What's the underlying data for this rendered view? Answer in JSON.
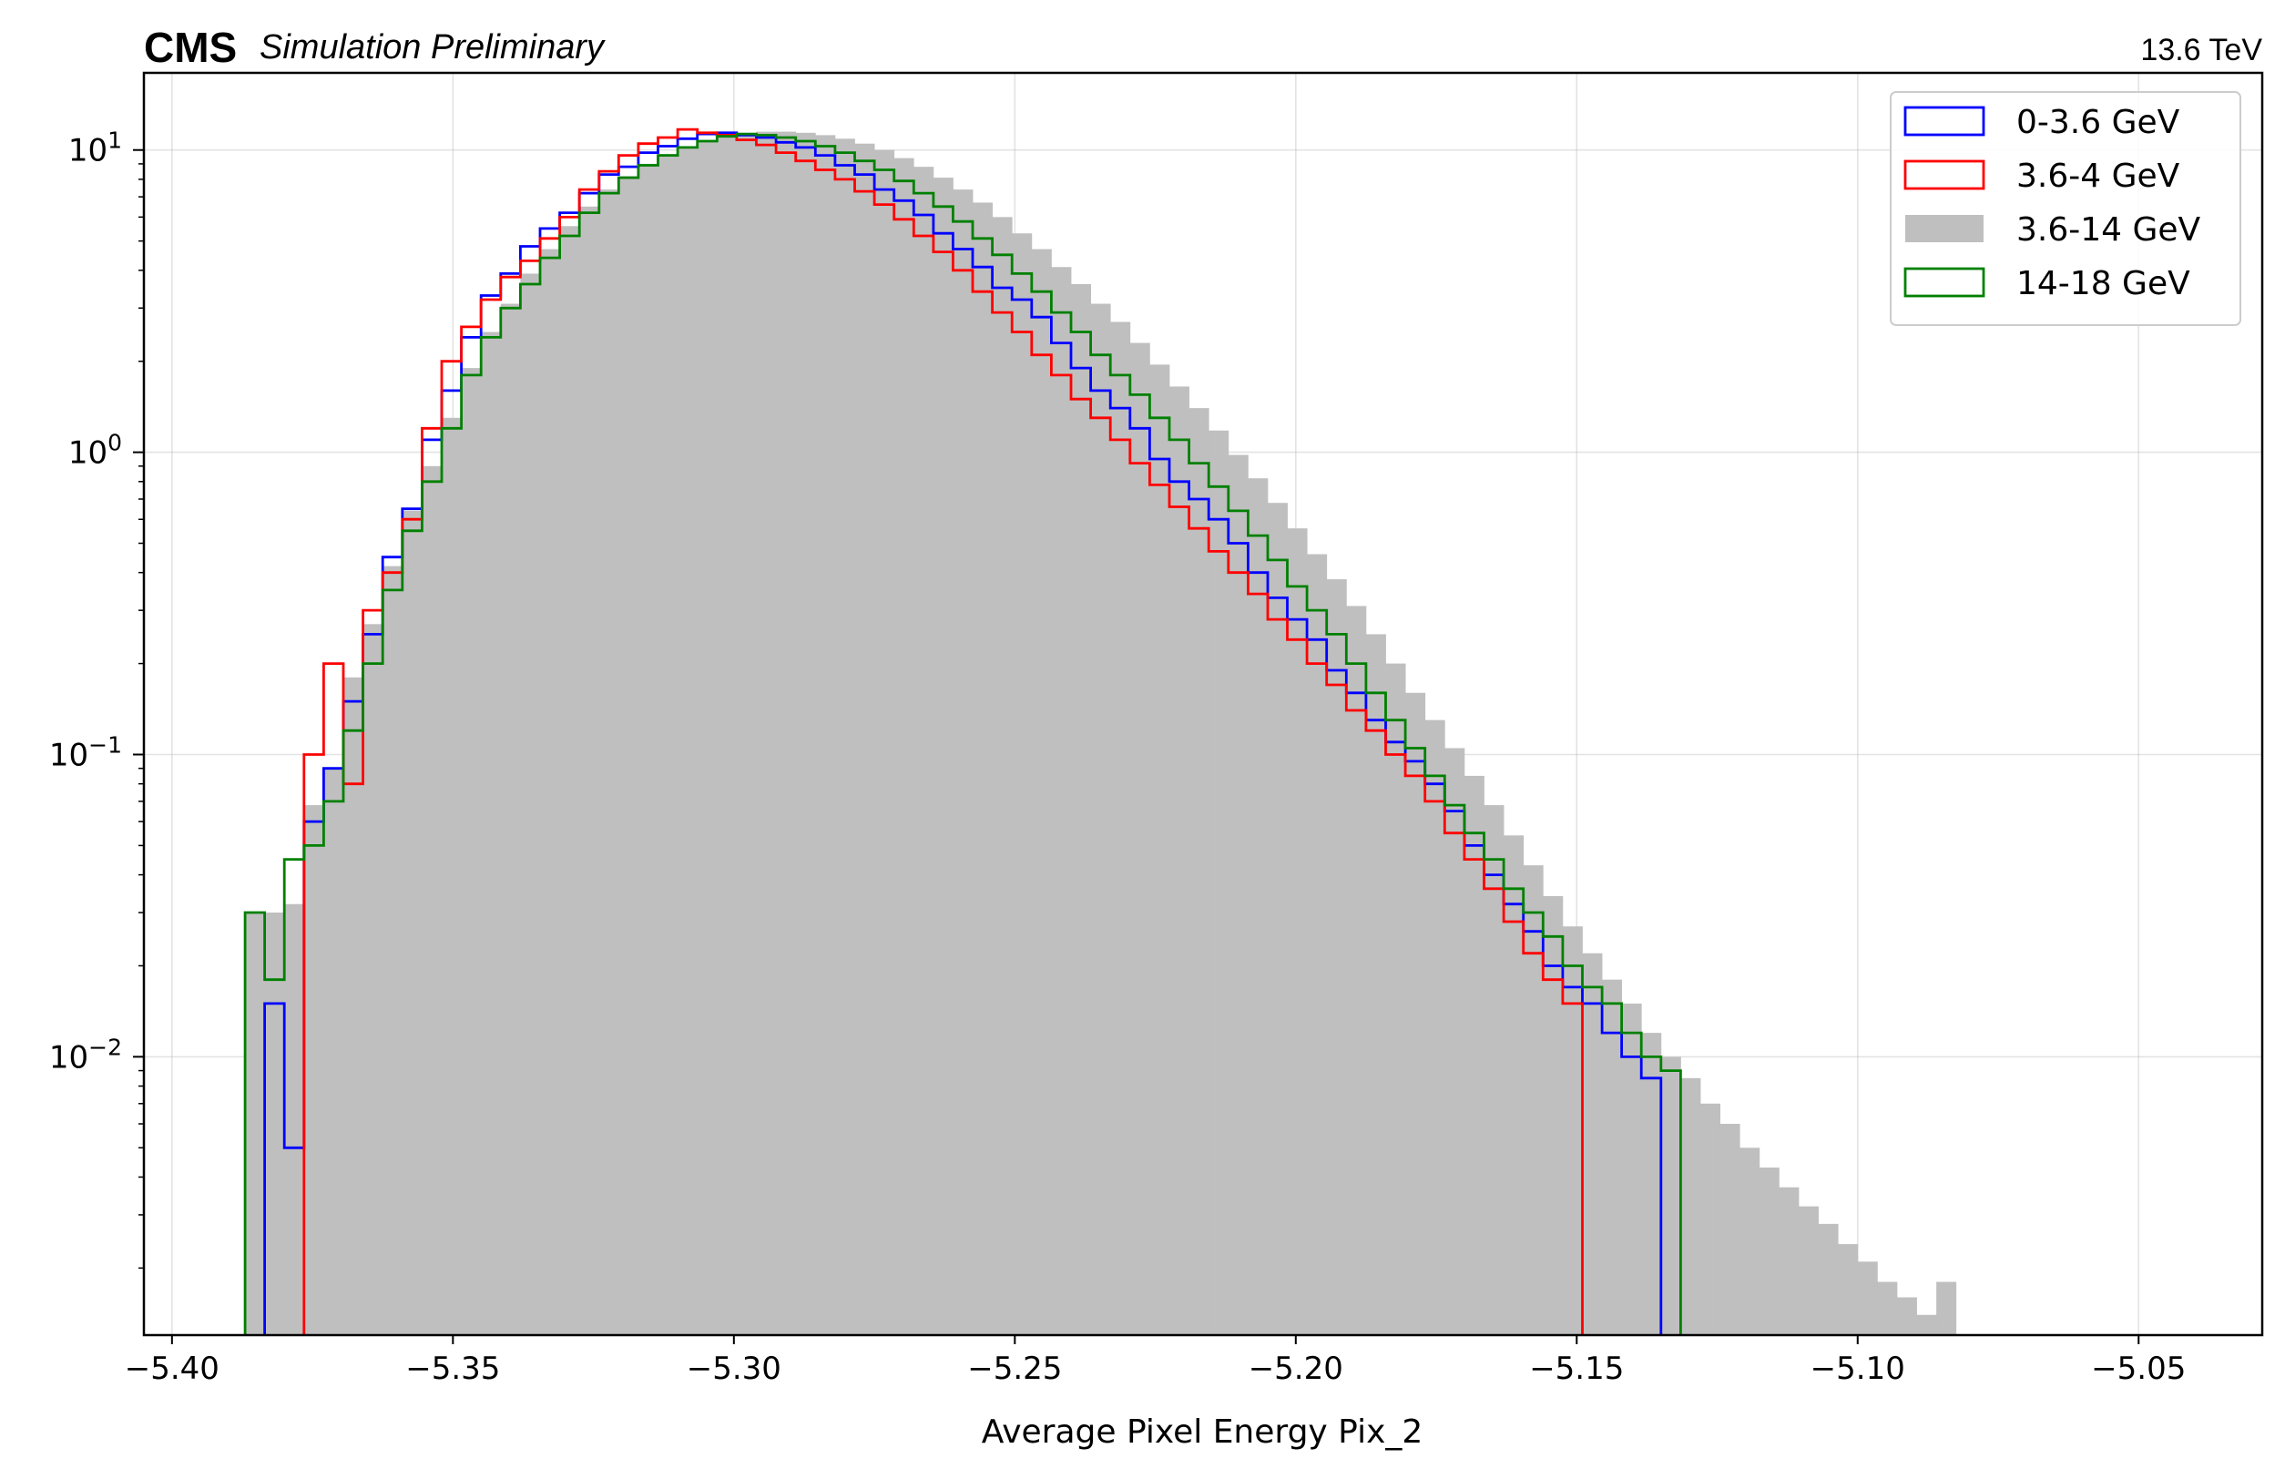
{
  "header": {
    "experiment": "CMS",
    "status": "Simulation Preliminary",
    "energy": "13.6 TeV"
  },
  "chart_data": {
    "type": "histogram",
    "xlabel": "Average Pixel Energy Pix_2",
    "ylabel": "",
    "xlim": [
      -5.405,
      -5.028
    ],
    "ylim": [
      0.0012,
      18
    ],
    "yscale": "log",
    "grid": true,
    "legend_position": "top-right",
    "x_ticks": [
      {
        "value": -5.4,
        "label": "−5.40"
      },
      {
        "value": -5.35,
        "label": "−5.35"
      },
      {
        "value": -5.3,
        "label": "−5.30"
      },
      {
        "value": -5.25,
        "label": "−5.25"
      },
      {
        "value": -5.2,
        "label": "−5.20"
      },
      {
        "value": -5.15,
        "label": "−5.15"
      },
      {
        "value": -5.1,
        "label": "−5.10"
      },
      {
        "value": -5.05,
        "label": "−5.05"
      }
    ],
    "y_ticks": [
      {
        "value": 10,
        "base": "10",
        "exp": "1"
      },
      {
        "value": 1,
        "base": "10",
        "exp": "0"
      },
      {
        "value": 0.1,
        "base": "10",
        "exp": "−1"
      },
      {
        "value": 0.01,
        "base": "10",
        "exp": "−2"
      }
    ],
    "bin_start": -5.387,
    "bin_width": 0.0035,
    "series": [
      {
        "name": "3.6-14 GeV",
        "style": "filled",
        "color": "#bfbfbf",
        "values": [
          0.03,
          0.03,
          0.032,
          0.068,
          0.09,
          0.18,
          0.27,
          0.42,
          0.64,
          0.9,
          1.3,
          1.9,
          2.5,
          3.1,
          3.9,
          4.7,
          5.6,
          6.5,
          7.4,
          8.2,
          9.0,
          9.7,
          10.3,
          10.8,
          11.2,
          11.4,
          11.5,
          11.5,
          11.4,
          11.2,
          10.9,
          10.5,
          10.0,
          9.4,
          8.8,
          8.1,
          7.4,
          6.7,
          6.0,
          5.3,
          4.7,
          4.1,
          3.6,
          3.1,
          2.7,
          2.3,
          1.95,
          1.65,
          1.4,
          1.18,
          0.98,
          0.82,
          0.68,
          0.56,
          0.46,
          0.38,
          0.31,
          0.25,
          0.2,
          0.16,
          0.13,
          0.105,
          0.085,
          0.068,
          0.054,
          0.043,
          0.034,
          0.027,
          0.022,
          0.018,
          0.015,
          0.012,
          0.01,
          0.0085,
          0.007,
          0.006,
          0.005,
          0.0043,
          0.0037,
          0.0032,
          0.0028,
          0.0024,
          0.0021,
          0.0018,
          0.0016,
          0.0014,
          0.0018,
          0.0,
          0.0,
          0.0,
          0.0,
          0.0,
          0.0,
          0.0,
          0.0,
          0.0,
          0.0,
          0.0,
          0.0,
          0.0,
          0.0,
          0.0,
          0.0,
          0.0,
          0.0,
          0.0,
          0.0,
          0.0
        ]
      },
      {
        "name": "0-3.6 GeV",
        "style": "step",
        "color": "#0000ff",
        "values": [
          0.0,
          0.015,
          0.005,
          0.06,
          0.09,
          0.15,
          0.25,
          0.45,
          0.65,
          1.1,
          1.6,
          2.4,
          3.3,
          3.9,
          4.8,
          5.5,
          6.2,
          7.2,
          8.3,
          8.8,
          9.8,
          10.3,
          10.9,
          11.3,
          11.4,
          11.2,
          11.0,
          10.6,
          10.2,
          9.6,
          8.9,
          8.3,
          7.4,
          6.8,
          6.1,
          5.3,
          4.7,
          4.1,
          3.5,
          3.2,
          2.8,
          2.3,
          1.9,
          1.6,
          1.4,
          1.2,
          0.95,
          0.8,
          0.7,
          0.6,
          0.5,
          0.4,
          0.33,
          0.28,
          0.24,
          0.19,
          0.16,
          0.13,
          0.11,
          0.095,
          0.08,
          0.065,
          0.05,
          0.04,
          0.032,
          0.026,
          0.02,
          0.017,
          0.015,
          0.012,
          0.01,
          0.0085,
          0.0,
          0.0,
          0.0,
          0.0,
          0.0,
          0.0,
          0.0,
          0.0,
          0.0,
          0.0,
          0.0,
          0.0,
          0.0,
          0.0,
          0.0,
          0.0,
          0.0,
          0.0,
          0.0,
          0.0,
          0.0,
          0.0,
          0.0,
          0.0,
          0.0,
          0.0,
          0.0,
          0.0,
          0.0,
          0.0,
          0.0,
          0.0,
          0.0,
          0.0,
          0.0,
          0.0
        ]
      },
      {
        "name": "3.6-4 GeV",
        "style": "step",
        "color": "#ff0000",
        "values": [
          0.0,
          0.0,
          0.0,
          0.1,
          0.2,
          0.08,
          0.3,
          0.4,
          0.6,
          1.2,
          2.0,
          2.6,
          3.2,
          3.8,
          4.3,
          5.1,
          6.0,
          7.4,
          8.5,
          9.6,
          10.5,
          11.0,
          11.7,
          11.4,
          11.2,
          10.8,
          10.4,
          9.8,
          9.2,
          8.6,
          8.0,
          7.3,
          6.6,
          5.9,
          5.2,
          4.6,
          4.0,
          3.4,
          2.9,
          2.5,
          2.1,
          1.8,
          1.5,
          1.3,
          1.1,
          0.92,
          0.78,
          0.66,
          0.56,
          0.47,
          0.4,
          0.34,
          0.28,
          0.24,
          0.2,
          0.17,
          0.14,
          0.12,
          0.1,
          0.085,
          0.07,
          0.055,
          0.045,
          0.036,
          0.028,
          0.022,
          0.018,
          0.015,
          0.0,
          0.0,
          0.0,
          0.0,
          0.0,
          0.0,
          0.0,
          0.0,
          0.0,
          0.0,
          0.0,
          0.0,
          0.0,
          0.0,
          0.0,
          0.0,
          0.0,
          0.0,
          0.0,
          0.0,
          0.0,
          0.0,
          0.0,
          0.0,
          0.0,
          0.0,
          0.0,
          0.0,
          0.0,
          0.0,
          0.0,
          0.0,
          0.0,
          0.0,
          0.0,
          0.0,
          0.0,
          0.0,
          0.0,
          0.0
        ]
      },
      {
        "name": "14-18 GeV",
        "style": "step",
        "color": "#008000",
        "values": [
          0.03,
          0.018,
          0.045,
          0.05,
          0.07,
          0.12,
          0.2,
          0.35,
          0.55,
          0.8,
          1.2,
          1.8,
          2.4,
          3.0,
          3.6,
          4.4,
          5.2,
          6.2,
          7.2,
          8.1,
          8.9,
          9.6,
          10.2,
          10.7,
          11.1,
          11.3,
          11.2,
          11.0,
          10.7,
          10.3,
          9.8,
          9.2,
          8.6,
          7.9,
          7.2,
          6.5,
          5.8,
          5.1,
          4.5,
          3.9,
          3.4,
          2.9,
          2.5,
          2.1,
          1.8,
          1.55,
          1.3,
          1.1,
          0.92,
          0.77,
          0.64,
          0.53,
          0.44,
          0.36,
          0.3,
          0.25,
          0.2,
          0.16,
          0.13,
          0.105,
          0.085,
          0.068,
          0.055,
          0.045,
          0.036,
          0.03,
          0.025,
          0.02,
          0.017,
          0.015,
          0.012,
          0.01,
          0.009,
          0.0,
          0.0,
          0.0,
          0.0,
          0.0,
          0.0,
          0.0,
          0.0,
          0.0,
          0.0,
          0.0,
          0.0,
          0.0,
          0.0,
          0.0,
          0.0,
          0.0,
          0.0,
          0.0,
          0.0,
          0.0,
          0.0,
          0.0,
          0.0,
          0.0,
          0.0,
          0.0,
          0.0,
          0.0,
          0.0,
          0.0,
          0.0,
          0.0,
          0.0,
          0.0
        ]
      }
    ]
  }
}
